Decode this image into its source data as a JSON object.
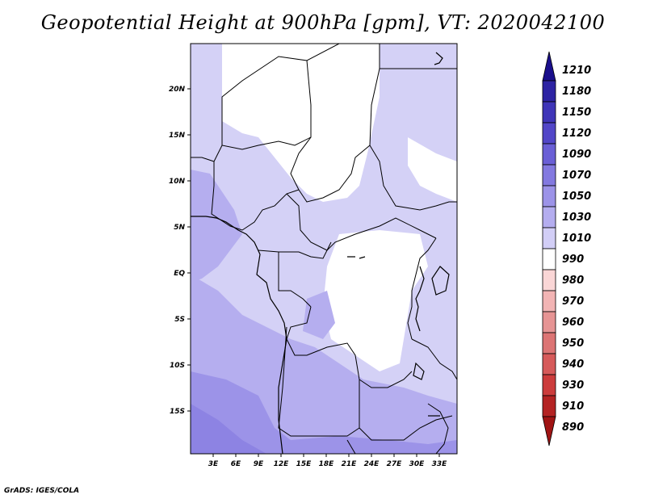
{
  "title": "Geopotential Height at 900hPa [gpm], VT: 2020042100",
  "credit": "GrADS: IGES/COLA",
  "map": {
    "lon_labels": [
      "3E",
      "6E",
      "9E",
      "12E",
      "15E",
      "18E",
      "21E",
      "24E",
      "27E",
      "30E",
      "33E"
    ],
    "lat_labels": [
      "20N",
      "15N",
      "10N",
      "5N",
      "EQ",
      "5S",
      "10S",
      "15S"
    ],
    "region": "Central Africa"
  },
  "colorbar": {
    "levels": [
      "1210",
      "1180",
      "1150",
      "1120",
      "1090",
      "1070",
      "1050",
      "1030",
      "1010",
      "990",
      "980",
      "970",
      "960",
      "950",
      "940",
      "930",
      "910",
      "890"
    ],
    "colors": [
      "#1a0f8c",
      "#2d23a3",
      "#3f35b8",
      "#5246c8",
      "#6a5fd6",
      "#8379e0",
      "#9c93e8",
      "#b4adef",
      "#d2cef6",
      "#ffffff",
      "#fad6d6",
      "#f2b4b4",
      "#e69494",
      "#dc7474",
      "#d65a5a",
      "#cc3c3c",
      "#b42323",
      "#a01414"
    ]
  }
}
